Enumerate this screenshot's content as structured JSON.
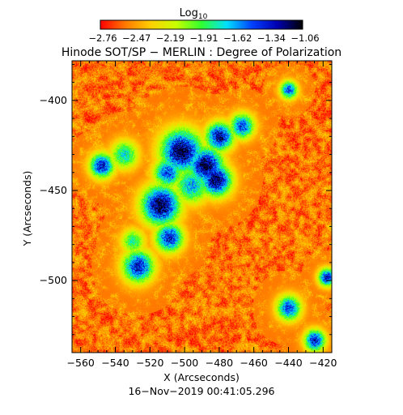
{
  "chart_data": {
    "type": "heatmap",
    "title": "Hinode SOT/SP − MERLIN : Degree of Polarization",
    "xlabel": "X (Arcseconds)",
    "ylabel": "Y (Arcseconds)",
    "timestamp": "16−Nov−2019 00:41:05.296",
    "x_range": [
      -565,
      -415
    ],
    "y_range": [
      -540,
      -378
    ],
    "x_ticks": [
      -560,
      -540,
      -520,
      -500,
      -480,
      -460,
      -440,
      -420
    ],
    "x_tick_labels": [
      "−560",
      "−540",
      "−520",
      "−500",
      "−480",
      "−460",
      "−440",
      "−420"
    ],
    "y_ticks": [
      -400,
      -450,
      -500
    ],
    "y_tick_labels": [
      "−400",
      "−450",
      "−500"
    ],
    "colorbar": {
      "label": "Log",
      "label_subscript": "10",
      "range": [
        -2.76,
        -1.06
      ],
      "ticks": [
        "−2.76",
        "−2.47",
        "−2.19",
        "−1.91",
        "−1.62",
        "−1.34",
        "−1.06"
      ],
      "colormap": [
        "#ff0000",
        "#ff7a00",
        "#ffd000",
        "#c8ff00",
        "#30ff30",
        "#00e0ff",
        "#0040ff",
        "#0000b0",
        "#000000"
      ]
    },
    "background_level": -2.55,
    "features": [
      {
        "x": -502,
        "y": -428,
        "peak": -1.1,
        "size": 12
      },
      {
        "x": -488,
        "y": -436,
        "peak": -1.08,
        "size": 10
      },
      {
        "x": -482,
        "y": -444,
        "peak": -1.12,
        "size": 9
      },
      {
        "x": -514,
        "y": -458,
        "peak": -1.08,
        "size": 11
      },
      {
        "x": -509,
        "y": -476,
        "peak": -1.3,
        "size": 8
      },
      {
        "x": -510,
        "y": -440,
        "peak": -1.4,
        "size": 8
      },
      {
        "x": -496,
        "y": -447,
        "peak": -1.6,
        "size": 10
      },
      {
        "x": -480,
        "y": -420,
        "peak": -1.2,
        "size": 8
      },
      {
        "x": -467,
        "y": -414,
        "peak": -1.4,
        "size": 7
      },
      {
        "x": -548,
        "y": -436,
        "peak": -1.3,
        "size": 7
      },
      {
        "x": -535,
        "y": -430,
        "peak": -1.7,
        "size": 8
      },
      {
        "x": -527,
        "y": -492,
        "peak": -1.3,
        "size": 9
      },
      {
        "x": -440,
        "y": -394,
        "peak": -1.4,
        "size": 5
      },
      {
        "x": -440,
        "y": -515,
        "peak": -1.4,
        "size": 7
      },
      {
        "x": -425,
        "y": -533,
        "peak": -1.3,
        "size": 6
      },
      {
        "x": -418,
        "y": -498,
        "peak": -1.3,
        "size": 5
      },
      {
        "x": -530,
        "y": -478,
        "peak": -1.8,
        "size": 7
      }
    ]
  }
}
